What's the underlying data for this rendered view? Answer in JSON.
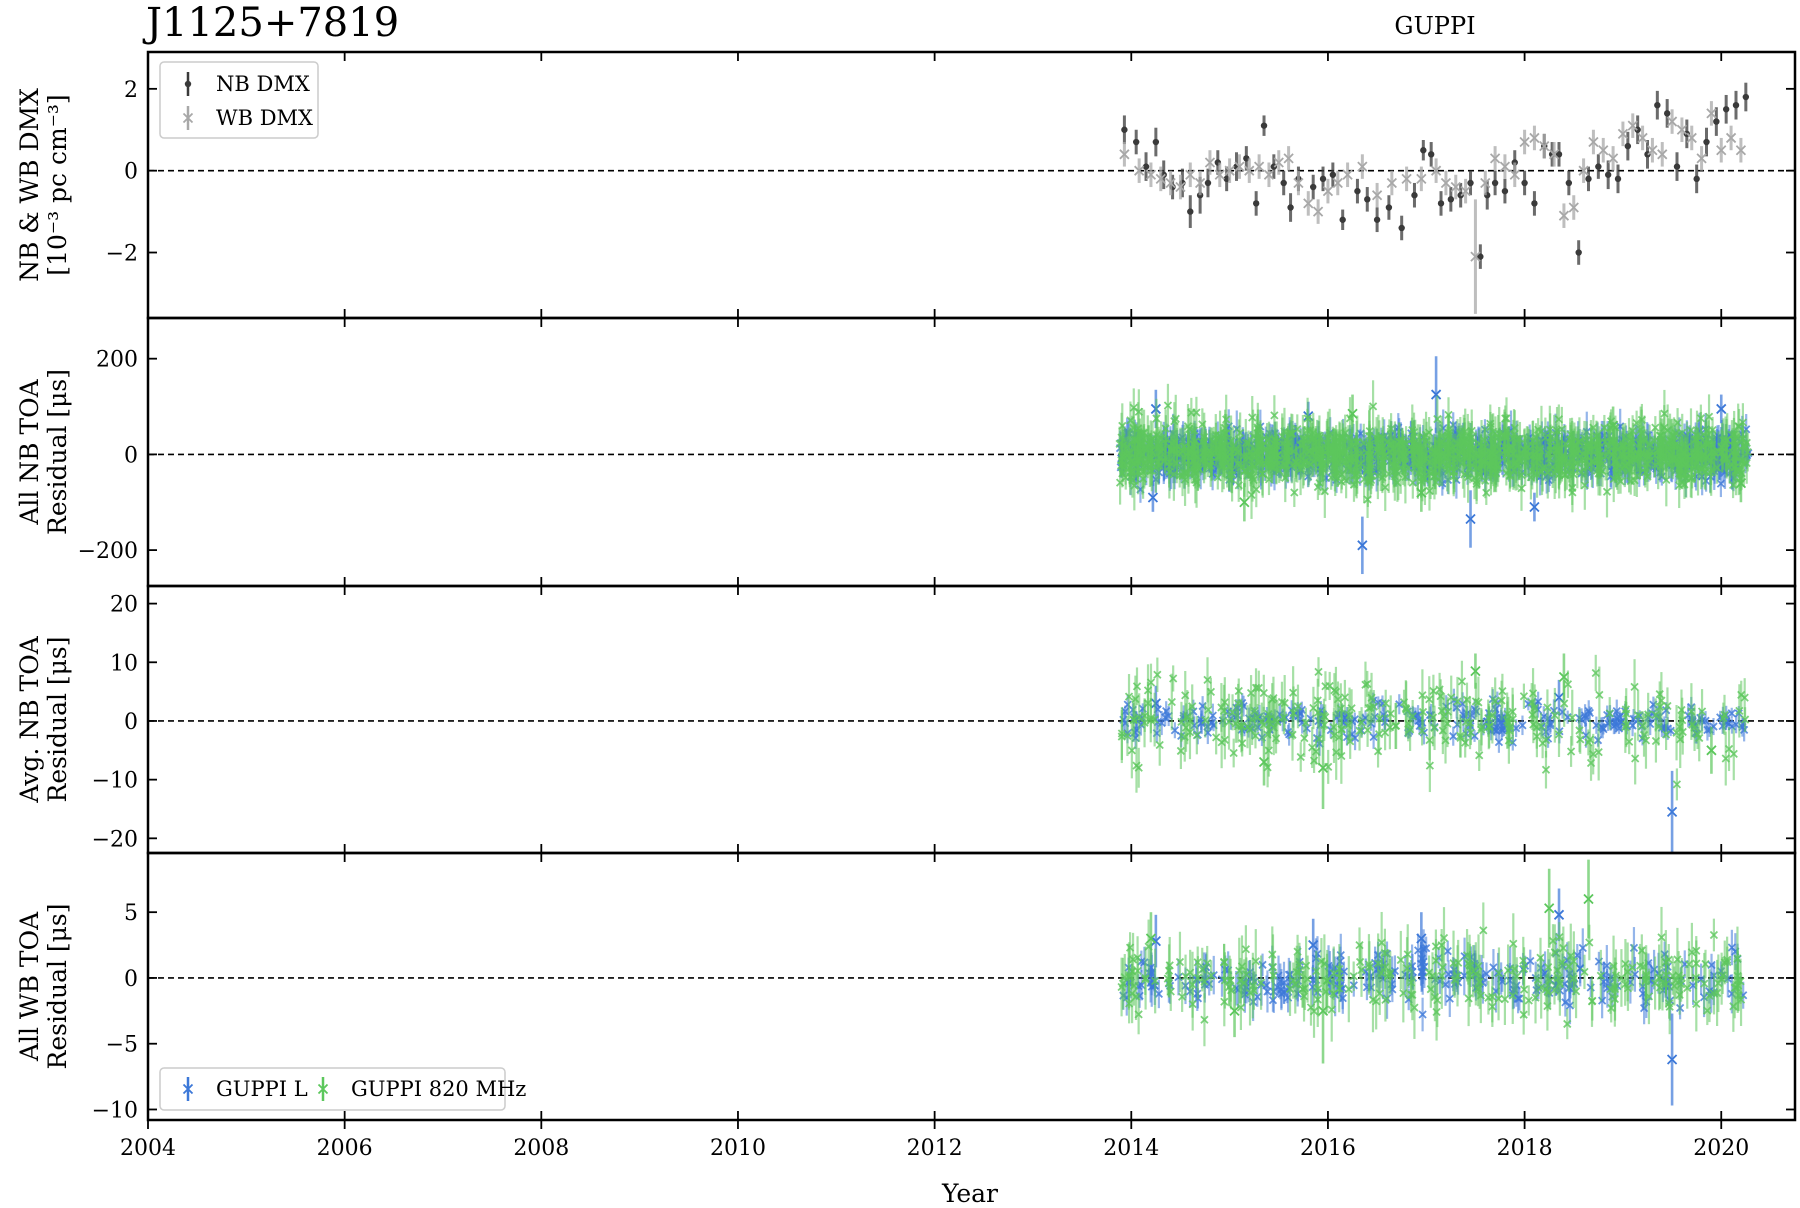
{
  "title": "J1125+7819",
  "subtitle": "GUPPI",
  "chart_data": {
    "type": "scatter",
    "xlabel": "Year",
    "xlim": [
      2004,
      2020.75
    ],
    "xticks": [
      2004,
      2006,
      2008,
      2010,
      2012,
      2014,
      2016,
      2018,
      2020
    ],
    "panels": [
      {
        "ylabel_lines": [
          "NB & WB DMX",
          "[10⁻³ pc cm⁻³]"
        ],
        "ylim": [
          -3.6,
          2.9
        ],
        "yticks": [
          2,
          0,
          -2
        ],
        "ytick_labels": [
          "2",
          "0",
          "−2"
        ],
        "reference_line": 0,
        "legend": {
          "position": "top-left",
          "entries": [
            "NB DMX",
            "WB DMX"
          ]
        },
        "series": [
          {
            "name": "NB DMX",
            "marker": "dot",
            "color": "#3a3a3a",
            "x": [
              2013.93,
              2014.05,
              2014.15,
              2014.25,
              2014.33,
              2014.42,
              2014.52,
              2014.6,
              2014.7,
              2014.78,
              2014.88,
              2014.97,
              2015.07,
              2015.17,
              2015.27,
              2015.35,
              2015.45,
              2015.55,
              2015.62,
              2015.7,
              2015.85,
              2015.95,
              2016.05,
              2016.15,
              2016.3,
              2016.4,
              2016.5,
              2016.62,
              2016.75,
              2016.88,
              2016.97,
              2017.05,
              2017.15,
              2017.25,
              2017.35,
              2017.45,
              2017.55,
              2017.62,
              2017.7,
              2017.8,
              2017.9,
              2018.0,
              2018.1,
              2018.2,
              2018.28,
              2018.35,
              2018.45,
              2018.55,
              2018.65,
              2018.75,
              2018.85,
              2018.95,
              2019.05,
              2019.15,
              2019.25,
              2019.35,
              2019.45,
              2019.55,
              2019.65,
              2019.75,
              2019.85,
              2019.95,
              2020.05,
              2020.15,
              2020.25
            ],
            "y": [
              1.0,
              0.7,
              0.1,
              0.7,
              -0.1,
              -0.4,
              -0.3,
              -1.0,
              -0.6,
              -0.3,
              0.2,
              -0.2,
              0.1,
              0.3,
              -0.8,
              1.1,
              0.1,
              -0.3,
              -0.9,
              -0.2,
              -0.4,
              -0.2,
              -0.1,
              -1.2,
              -0.5,
              -0.7,
              -1.2,
              -0.9,
              -1.4,
              -0.6,
              0.5,
              0.4,
              -0.8,
              -0.7,
              -0.6,
              -0.3,
              -2.1,
              -0.6,
              -0.3,
              -0.5,
              0.2,
              -0.3,
              -0.8,
              0.6,
              0.4,
              0.4,
              -0.3,
              -2.0,
              -0.2,
              0.1,
              -0.1,
              -0.2,
              0.6,
              1.0,
              0.4,
              1.6,
              1.4,
              0.1,
              0.9,
              -0.2,
              0.7,
              1.2,
              1.5,
              1.6,
              1.8
            ],
            "err": [
              0.35,
              0.3,
              0.35,
              0.35,
              0.35,
              0.3,
              0.35,
              0.4,
              0.45,
              0.35,
              0.3,
              0.3,
              0.35,
              0.3,
              0.3,
              0.25,
              0.3,
              0.3,
              0.35,
              0.3,
              0.3,
              0.3,
              0.3,
              0.25,
              0.3,
              0.3,
              0.3,
              0.3,
              0.3,
              0.3,
              0.25,
              0.3,
              0.3,
              0.3,
              0.3,
              0.3,
              0.3,
              0.35,
              0.3,
              0.3,
              0.3,
              0.3,
              0.3,
              0.3,
              0.3,
              0.3,
              0.3,
              0.3,
              0.3,
              0.3,
              0.35,
              0.35,
              0.35,
              0.35,
              0.35,
              0.35,
              0.35,
              0.35,
              0.35,
              0.35,
              0.35,
              0.35,
              0.35,
              0.35,
              0.35
            ]
          },
          {
            "name": "WB DMX",
            "marker": "x",
            "color": "#a8a8a8",
            "x": [
              2013.93,
              2014.08,
              2014.2,
              2014.3,
              2014.4,
              2014.5,
              2014.6,
              2014.7,
              2014.8,
              2014.9,
              2015.0,
              2015.1,
              2015.2,
              2015.3,
              2015.4,
              2015.5,
              2015.6,
              2015.7,
              2015.8,
              2015.9,
              2016.0,
              2016.1,
              2016.2,
              2016.35,
              2016.5,
              2016.65,
              2016.8,
              2016.95,
              2017.1,
              2017.2,
              2017.3,
              2017.4,
              2017.5,
              2017.6,
              2017.7,
              2017.8,
              2017.9,
              2018.0,
              2018.1,
              2018.2,
              2018.3,
              2018.4,
              2018.5,
              2018.6,
              2018.7,
              2018.8,
              2018.9,
              2019.0,
              2019.1,
              2019.2,
              2019.3,
              2019.4,
              2019.5,
              2019.6,
              2019.7,
              2019.8,
              2019.9,
              2020.0,
              2020.1,
              2020.2
            ],
            "y": [
              0.4,
              0.0,
              -0.1,
              -0.2,
              -0.3,
              -0.4,
              -0.1,
              -0.3,
              0.2,
              -0.1,
              0.0,
              0.1,
              0.0,
              0.1,
              -0.1,
              0.2,
              0.3,
              -0.3,
              -0.8,
              -1.0,
              -0.5,
              -0.3,
              -0.1,
              0.1,
              -0.6,
              -0.3,
              -0.2,
              -0.2,
              0.0,
              -0.3,
              -0.4,
              -0.5,
              -2.1,
              -0.3,
              0.3,
              0.1,
              -0.1,
              0.7,
              0.8,
              0.6,
              0.4,
              -1.1,
              -0.9,
              0.0,
              0.7,
              0.5,
              0.3,
              0.9,
              1.1,
              0.8,
              0.5,
              0.4,
              1.2,
              1.0,
              0.8,
              0.3,
              1.4,
              0.5,
              0.8,
              0.5
            ],
            "err": [
              0.3,
              0.3,
              0.3,
              0.3,
              0.3,
              0.3,
              0.3,
              0.3,
              0.3,
              0.3,
              0.3,
              0.3,
              0.3,
              0.3,
              0.3,
              0.3,
              0.3,
              0.3,
              0.3,
              0.3,
              0.3,
              0.3,
              0.3,
              0.3,
              0.3,
              0.3,
              0.3,
              0.3,
              0.3,
              0.3,
              0.3,
              0.3,
              1.4,
              0.3,
              0.3,
              0.3,
              0.3,
              0.3,
              0.3,
              0.3,
              0.3,
              0.3,
              0.3,
              0.3,
              0.3,
              0.3,
              0.3,
              0.3,
              0.3,
              0.3,
              0.3,
              0.3,
              0.3,
              0.3,
              0.3,
              0.3,
              0.3,
              0.3,
              0.3,
              0.3
            ]
          }
        ]
      },
      {
        "ylabel_lines": [
          "All NB TOA",
          "Residual [μs]"
        ],
        "ylim": [
          -275,
          285
        ],
        "yticks": [
          200,
          0,
          -200
        ],
        "ytick_labels": [
          "200",
          "0",
          "−200"
        ],
        "reference_line": 0,
        "series": [
          {
            "name": "GUPPI L",
            "marker": "x",
            "color": "#3c78d8",
            "x_range": [
              2013.88,
              2020.28
            ],
            "spread": 22,
            "err": 30,
            "outliers": [
              [
                2014.25,
                95,
                40
              ],
              [
                2014.22,
                -90,
                30
              ],
              [
                2016.35,
                -190,
                60
              ],
              [
                2017.1,
                125,
                80
              ],
              [
                2017.45,
                -135,
                60
              ],
              [
                2018.1,
                -110,
                30
              ],
              [
                2020.0,
                95,
                30
              ],
              [
                2015.8,
                80,
                30
              ]
            ]
          },
          {
            "name": "GUPPI 820 MHz",
            "marker": "x",
            "color": "#5cc75c",
            "x_range": [
              2013.88,
              2020.28
            ],
            "spread": 30,
            "err": 40,
            "outliers": [
              [
                2015.15,
                -100,
                40
              ],
              [
                2016.25,
                85,
                40
              ],
              [
                2016.95,
                -80,
                40
              ],
              [
                2018.9,
                60,
                40
              ],
              [
                2020.2,
                -60,
                40
              ]
            ]
          }
        ]
      },
      {
        "ylabel_lines": [
          "Avg. NB TOA",
          "Residual [μs]"
        ],
        "ylim": [
          -22.5,
          23
        ],
        "yticks": [
          20,
          10,
          0,
          -10,
          -20
        ],
        "ytick_labels": [
          "20",
          "10",
          "0",
          "−10",
          "−20"
        ],
        "reference_line": 0,
        "series": [
          {
            "name": "GUPPI L",
            "marker": "x",
            "color": "#3c78d8",
            "x_range": [
              2013.9,
              2020.25
            ],
            "spread": 1.5,
            "err": 1.5,
            "outliers": [
              [
                2019.5,
                -15.5,
                7
              ],
              [
                2014.25,
                3,
                3
              ],
              [
                2018.35,
                4,
                3
              ]
            ]
          },
          {
            "name": "GUPPI 820 MHz",
            "marker": "x",
            "color": "#5cc75c",
            "x_range": [
              2013.9,
              2020.25
            ],
            "spread": 3.5,
            "err": 3.5,
            "outliers": [
              [
                2015.95,
                -8,
                7
              ],
              [
                2017.5,
                8.5,
                3
              ],
              [
                2018.4,
                7.5,
                4
              ],
              [
                2015.35,
                -7,
                4
              ],
              [
                2019.9,
                -5,
                4
              ]
            ]
          }
        ]
      },
      {
        "ylabel_lines": [
          "All WB TOA",
          "Residual [μs]"
        ],
        "ylim": [
          -10.8,
          9.5
        ],
        "yticks": [
          5,
          0,
          -5,
          -10
        ],
        "ytick_labels": [
          "5",
          "0",
          "−5",
          "−10"
        ],
        "reference_line": 0,
        "legend": {
          "position": "bottom-left",
          "entries": [
            "GUPPI L",
            "GUPPI 820 MHz"
          ]
        },
        "series": [
          {
            "name": "GUPPI L",
            "marker": "x",
            "color": "#3c78d8",
            "x_range": [
              2013.9,
              2020.25
            ],
            "spread": 1.0,
            "err": 1.2,
            "outliers": [
              [
                2019.5,
                -6.2,
                3.5
              ],
              [
                2018.35,
                4.8,
                2
              ],
              [
                2014.25,
                2.8,
                2
              ],
              [
                2015.85,
                2.5,
                2
              ],
              [
                2016.95,
                3.0,
                2
              ]
            ]
          },
          {
            "name": "GUPPI 820 MHz",
            "marker": "x",
            "color": "#5cc75c",
            "x_range": [
              2013.9,
              2020.25
            ],
            "spread": 1.2,
            "err": 1.8,
            "outliers": [
              [
                2018.25,
                5.3,
                3
              ],
              [
                2018.65,
                6.0,
                3
              ],
              [
                2015.95,
                -2.5,
                4
              ],
              [
                2015.05,
                -2.5,
                2
              ],
              [
                2014.2,
                3.0,
                2
              ]
            ]
          }
        ]
      }
    ]
  }
}
